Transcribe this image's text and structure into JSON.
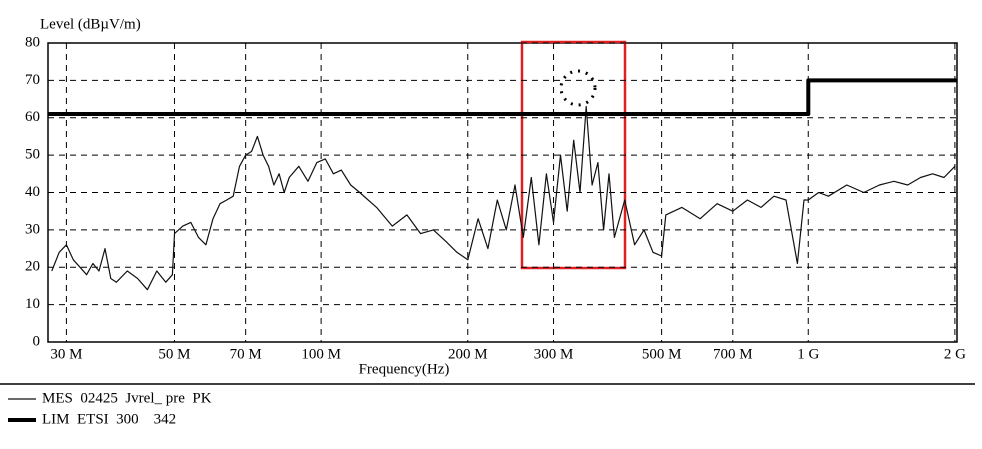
{
  "chart_data": {
    "type": "line",
    "y_label": "Level (dBµV/m)",
    "x_label": "Frequency(Hz)",
    "log_x": true,
    "grid": true,
    "xlim": [
      27.5,
      2020
    ],
    "ylim": [
      0,
      80
    ],
    "yticks": [
      0,
      10,
      20,
      30,
      40,
      50,
      60,
      70,
      80
    ],
    "xticks": [
      {
        "value": 30,
        "label": "30 M"
      },
      {
        "value": 50,
        "label": "50 M"
      },
      {
        "value": 70,
        "label": "70 M"
      },
      {
        "value": 100,
        "label": "100 M"
      },
      {
        "value": 200,
        "label": "200 M"
      },
      {
        "value": 300,
        "label": "300 M"
      },
      {
        "value": 500,
        "label": "500 M"
      },
      {
        "value": 700,
        "label": "700 M"
      },
      {
        "value": 1000,
        "label": "1 G"
      },
      {
        "value": 2000,
        "label": "2 G"
      }
    ],
    "series": [
      {
        "name": "MES  02425  Jvrel_ pre  PK",
        "color": "#111111",
        "width": 1.2,
        "x": [
          28,
          29,
          30,
          31,
          32,
          33,
          34,
          35,
          36,
          37,
          38,
          40,
          42,
          44,
          46,
          48,
          49.5,
          50,
          52,
          54,
          56,
          58,
          60,
          62,
          64,
          66,
          68,
          70,
          72,
          74,
          76,
          78,
          80,
          82,
          84,
          86,
          90,
          94,
          98,
          102,
          106,
          110,
          115,
          120,
          130,
          140,
          150,
          160,
          170,
          180,
          190,
          200,
          210,
          220,
          230,
          240,
          250,
          260,
          270,
          280,
          290,
          300,
          310,
          320,
          330,
          340,
          350,
          360,
          370,
          380,
          390,
          400,
          420,
          440,
          460,
          480,
          500,
          510,
          550,
          600,
          650,
          700,
          750,
          800,
          850,
          900,
          950,
          980,
          1000,
          1050,
          1100,
          1200,
          1300,
          1400,
          1500,
          1600,
          1700,
          1800,
          1900,
          2000
        ],
        "values": [
          19,
          24,
          26,
          22,
          20,
          18,
          21,
          19,
          25,
          17,
          16,
          19,
          17,
          14,
          19,
          16,
          18,
          29,
          31,
          32,
          28,
          26,
          33,
          37,
          38,
          39,
          47,
          50,
          51,
          55,
          50,
          47,
          42,
          45,
          40,
          44,
          47,
          43,
          48,
          49,
          45,
          46,
          42,
          40,
          36,
          31,
          34,
          29,
          30,
          27,
          24,
          22,
          33,
          25,
          38,
          30,
          42,
          28,
          44,
          26,
          45,
          32,
          50,
          35,
          54,
          40,
          63,
          42,
          48,
          30,
          45,
          28,
          38,
          26,
          30,
          24,
          23,
          34,
          36,
          33,
          37,
          35,
          38,
          36,
          39,
          38,
          21,
          38,
          38,
          40,
          39,
          42,
          40,
          42,
          43,
          42,
          44,
          45,
          44,
          47
        ]
      },
      {
        "name": "LIM  ETSI  300    342",
        "color": "#000000",
        "width": 4,
        "x": [
          27.5,
          1000,
          1000,
          2020
        ],
        "values": [
          61,
          61,
          70,
          70
        ]
      }
    ]
  }
}
